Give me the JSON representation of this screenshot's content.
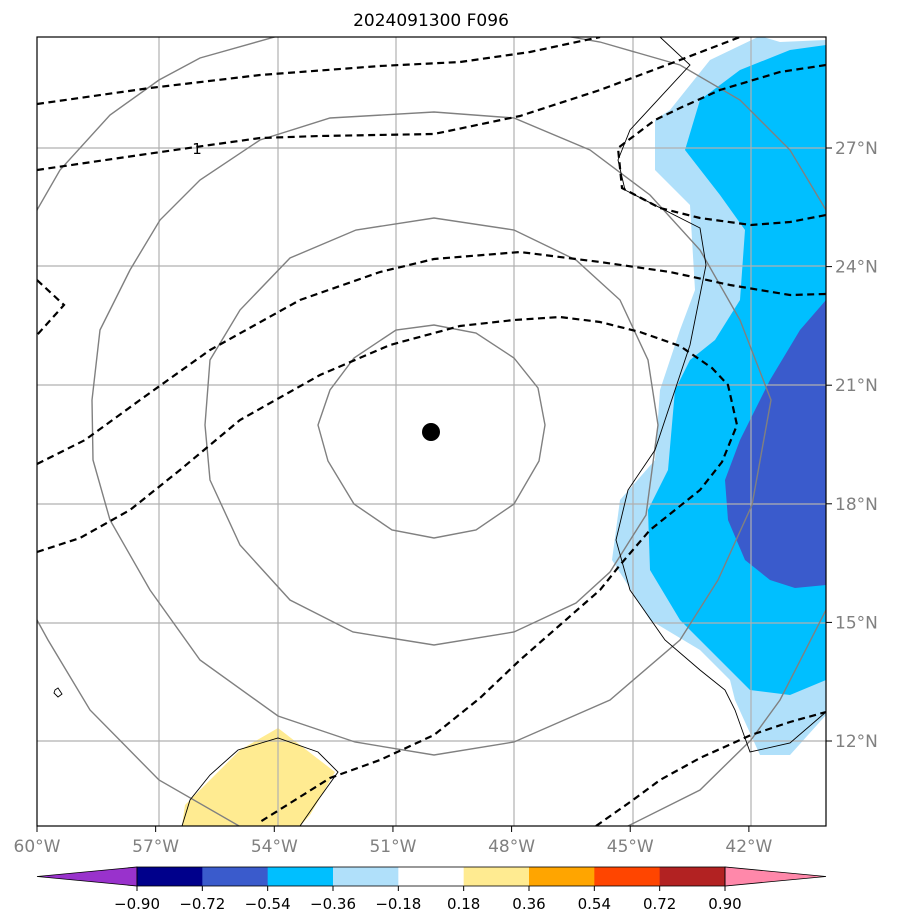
{
  "chart_data": {
    "type": "contour map",
    "title": "2024091300 F096",
    "x_axis": {
      "ticks": [
        -60,
        -57,
        -54,
        -51,
        -48,
        -45,
        -42
      ],
      "tick_labels": [
        "60°W",
        "57°W",
        "54°W",
        "51°W",
        "48°W",
        "45°W",
        "42°W"
      ]
    },
    "y_axis": {
      "ticks": [
        12,
        15,
        18,
        21,
        24,
        27
      ],
      "tick_labels": [
        "12°N",
        "15°N",
        "18°N",
        "21°N",
        "24°N",
        "27°N"
      ],
      "position": "right"
    },
    "grid": true,
    "center_marker": {
      "lon": -50.9,
      "lat": 19.8
    },
    "range_rings_deg": [
      3,
      6,
      9,
      12
    ],
    "dashed_contour_label": "1",
    "colorbar": {
      "levels": [
        -0.9,
        -0.72,
        -0.54,
        -0.36,
        -0.18,
        0.18,
        0.36,
        0.54,
        0.72,
        0.9
      ],
      "tick_labels": [
        "−0.90",
        "−0.72",
        "−0.54",
        "−0.36",
        "−0.18",
        "0.18",
        "0.36",
        "0.54",
        "0.72",
        "0.90"
      ],
      "colors": [
        "#9932cc",
        "#00008b",
        "#3a5bcc",
        "#00bfff",
        "#b0e0fa",
        "#ffffff",
        "#ffeb91",
        "#ffa500",
        "#ff4500",
        "#b22222",
        "#ff88aa"
      ],
      "extend": "both"
    }
  }
}
